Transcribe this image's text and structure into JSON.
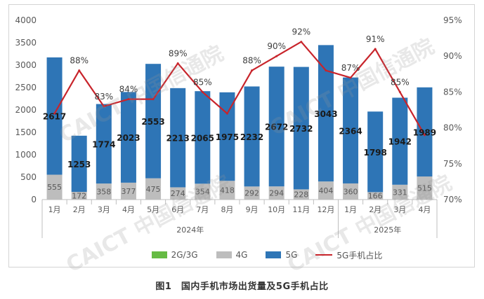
{
  "caption": "图1　国内手机市场出货量及5G手机占比",
  "watermark": "CAICT 中国信通院",
  "colors": {
    "c2g": "#66bb44",
    "c4g": "#bdbdbd",
    "c5g": "#2e75b6",
    "cline": "#c8242b",
    "axis": "#595959",
    "label": "#1a1a1a"
  },
  "chart_data": {
    "type": "bar",
    "stacked": true,
    "categories": [
      "1月",
      "2月",
      "3月",
      "4月",
      "5月",
      "6月",
      "7月",
      "8月",
      "9月",
      "10月",
      "11月",
      "12月",
      "1月",
      "2月",
      "3月",
      "4月"
    ],
    "year_groups": [
      {
        "label": "2024年",
        "from": 0,
        "to": 11
      },
      {
        "label": "2025年",
        "from": 12,
        "to": 15
      }
    ],
    "series": [
      {
        "name": "2G/3G",
        "values": [
          0,
          0,
          0,
          0,
          0,
          0,
          0,
          0,
          0,
          0,
          0,
          0,
          0,
          0,
          0,
          0
        ]
      },
      {
        "name": "4G",
        "values": [
          555,
          172,
          358,
          377,
          475,
          274,
          354,
          418,
          292,
          294,
          228,
          404,
          360,
          166,
          331,
          515
        ]
      },
      {
        "name": "5G",
        "values": [
          2617,
          1253,
          1774,
          2023,
          2553,
          2213,
          2065,
          1975,
          2232,
          2672,
          2732,
          3043,
          2364,
          1798,
          1942,
          1989
        ]
      }
    ],
    "line_series": {
      "name": "5G手机占比",
      "values": [
        82,
        88,
        83,
        84,
        84,
        89,
        85,
        82,
        88,
        90,
        92,
        88,
        87,
        91,
        85,
        79
      ],
      "labels": [
        "",
        "88%",
        "83%",
        "84%",
        "",
        "89%",
        "85%",
        "",
        "88%",
        "90%",
        "92%",
        "",
        "87%",
        "91%",
        "85%",
        ""
      ]
    },
    "y_left": {
      "min": 0,
      "max": 4000,
      "ticks": [
        0,
        500,
        1000,
        1500,
        2000,
        2500,
        3000,
        3500,
        4000
      ]
    },
    "y_right": {
      "min": 70,
      "max": 95,
      "ticks": [
        "70%",
        "75%",
        "80%",
        "85%",
        "90%",
        "95%"
      ]
    },
    "legend": [
      "2G/3G",
      "4G",
      "5G",
      "5G手机占比"
    ],
    "legend_position": "bottom"
  }
}
